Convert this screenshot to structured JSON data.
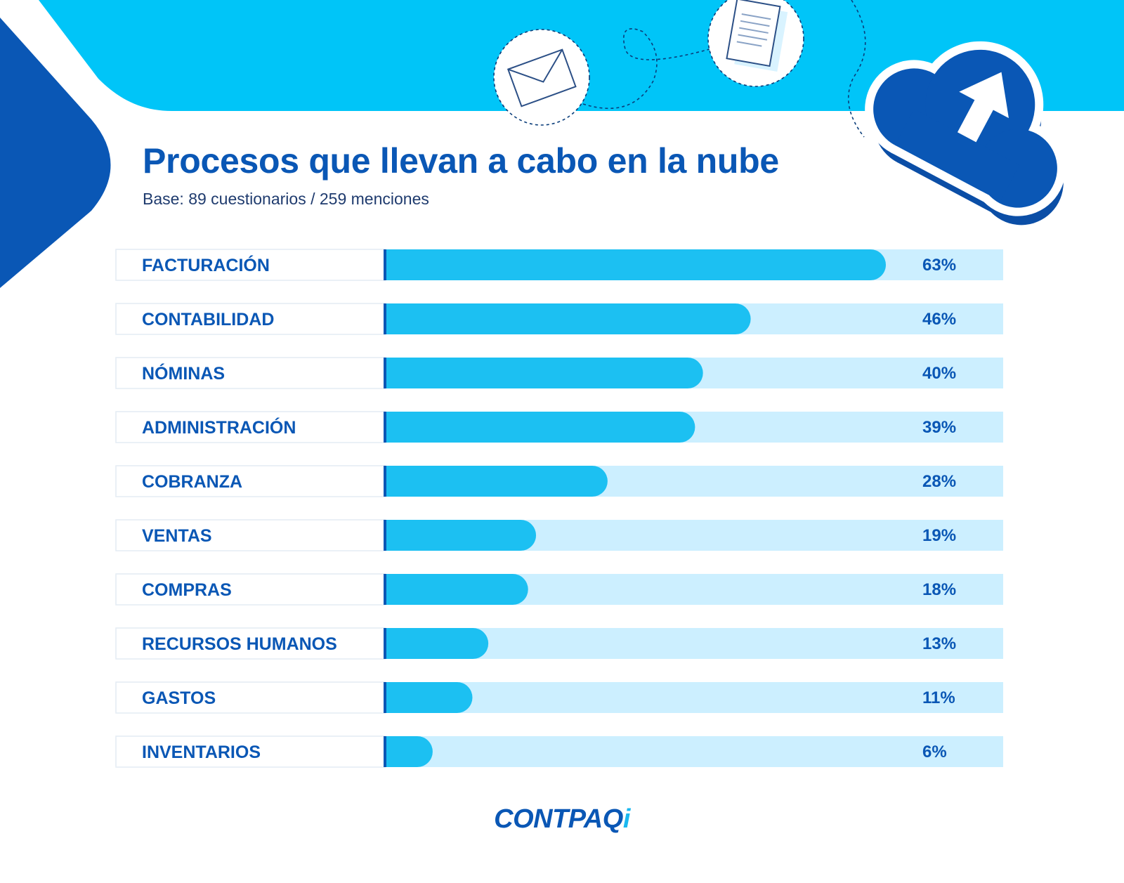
{
  "header": {
    "title": "Procesos que llevan a cabo en la nube",
    "subtitle": "Base: 89 cuestionarios / 259 menciones"
  },
  "logo": {
    "main": "CONTPAQ",
    "accent": "i"
  },
  "icons": [
    "envelope-icon",
    "document-icon",
    "cloud-upload-icon"
  ],
  "colors": {
    "title": "#0a57b5",
    "bar": "#1cc0f2",
    "track": "#ccefff",
    "header_band": "#00c5f8",
    "accent_dark": "#0a57b5"
  },
  "chart_data": {
    "type": "bar",
    "orientation": "horizontal",
    "title": "Procesos que llevan a cabo en la nube",
    "subtitle": "Base: 89 cuestionarios / 259 menciones",
    "categories": [
      "FACTURACIÓN",
      "CONTABILIDAD",
      "NÓMINAS",
      "ADMINISTRACIÓN",
      "COBRANZA",
      "VENTAS",
      "COMPRAS",
      "RECURSOS HUMANOS",
      "GASTOS",
      "INVENTARIOS"
    ],
    "values": [
      63,
      46,
      40,
      39,
      28,
      19,
      18,
      13,
      11,
      6
    ],
    "value_labels": [
      "63%",
      "46%",
      "40%",
      "39%",
      "28%",
      "19%",
      "18%",
      "13%",
      "11%",
      "6%"
    ],
    "unit": "%",
    "xlim": [
      0,
      100
    ],
    "grid": false,
    "legend": "none"
  }
}
